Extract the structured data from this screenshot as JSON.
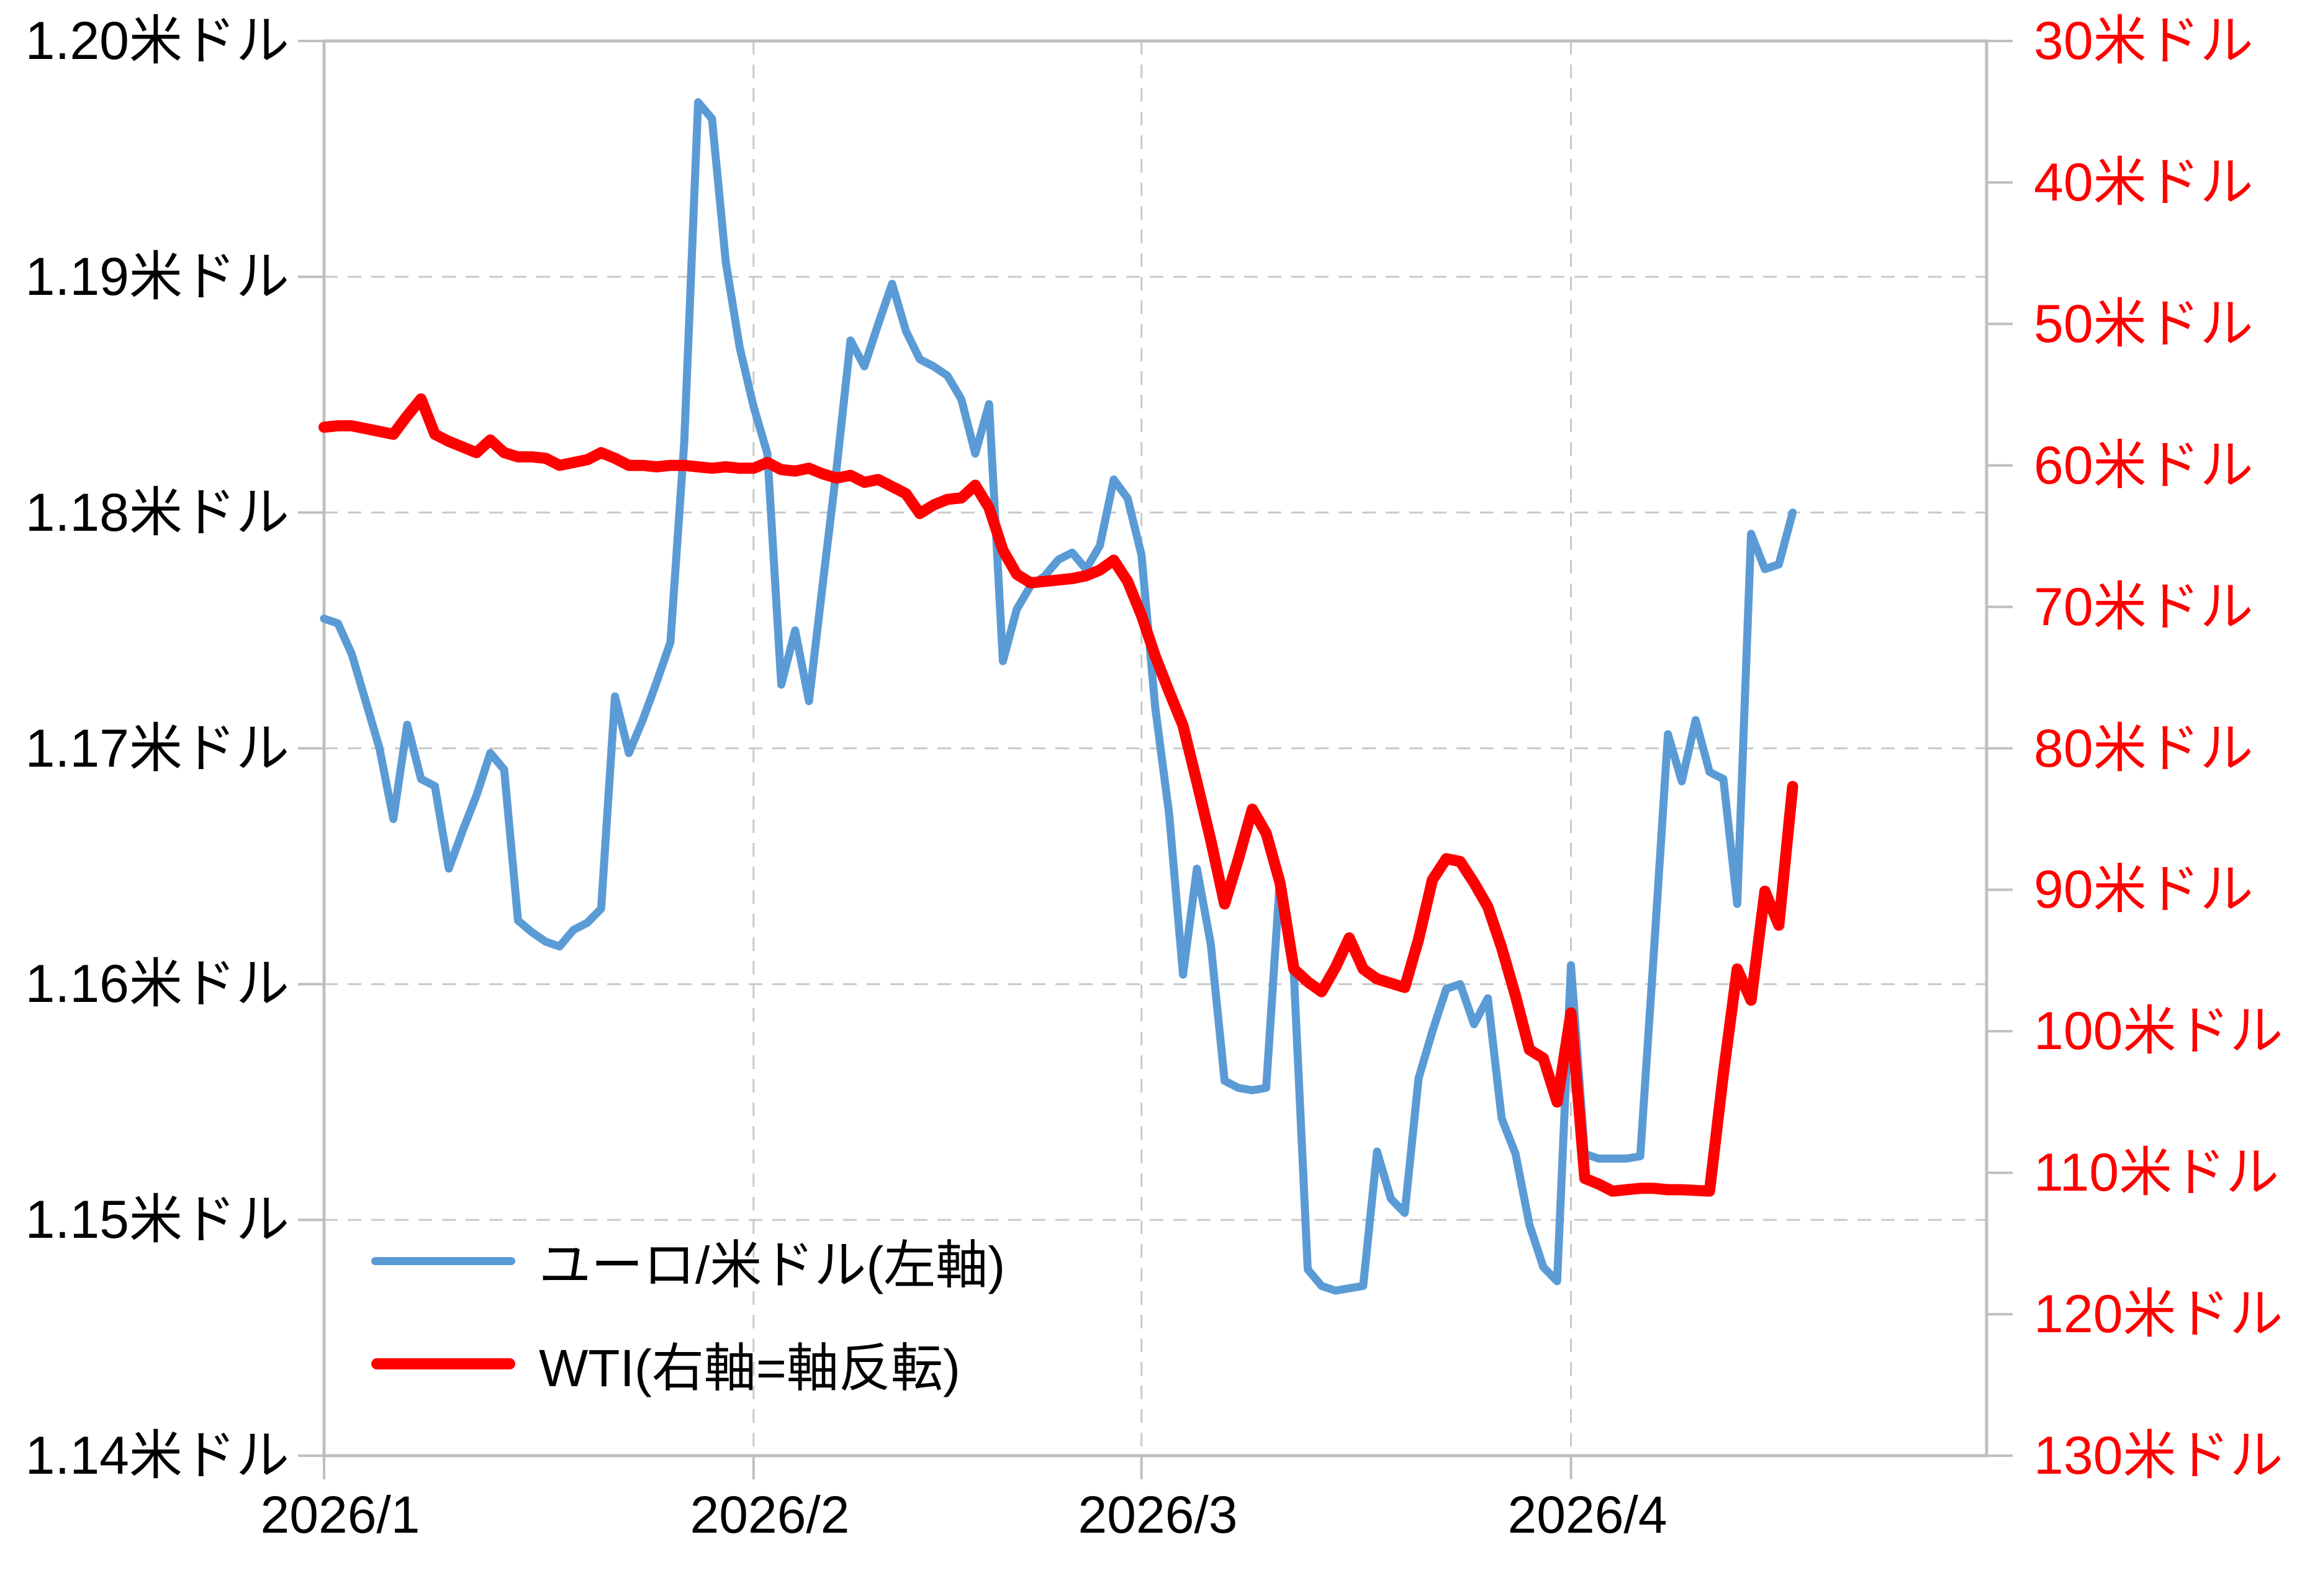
{
  "chart_data": {
    "type": "line",
    "title": "",
    "x_axis": {
      "tick_labels": [
        "2026/1",
        "2026/2",
        "2026/3",
        "2026/4"
      ],
      "tick_day_indices": [
        0,
        31,
        59,
        90
      ],
      "total_day_slots": 120,
      "start_date": "2026/1/1",
      "end_date": "2026/4/17"
    },
    "left_axis": {
      "labels": [
        "1.20米ドル",
        "1.19米ドル",
        "1.18米ドル",
        "1.17米ドル",
        "1.16米ドル",
        "1.15米ドル",
        "1.14米ドル"
      ],
      "max": 1.2,
      "min": 1.14,
      "unit": "米ドル",
      "color": "#000000"
    },
    "right_axis": {
      "labels": [
        "30米ドル",
        "40米ドル",
        "50米ドル",
        "60米ドル",
        "70米ドル",
        "80米ドル",
        "90米ドル",
        "100米ドル",
        "110米ドル",
        "120米ドル",
        "130米ドル"
      ],
      "min": 30,
      "max": 130,
      "inverted": true,
      "unit": "米ドル",
      "color": "#FF0000"
    },
    "grid": true,
    "legend_position": "inside-lower-left",
    "series": [
      {
        "name": "ユーロ/米ドル(左軸)",
        "axis": "left",
        "color": "#5B9BD5",
        "stroke_width": 13,
        "values": [
          1.1755,
          1.1753,
          1.174,
          1.172,
          1.17,
          1.167,
          1.171,
          1.1687,
          1.1684,
          1.1649,
          1.1665,
          1.168,
          1.1698,
          1.1691,
          1.1627,
          1.1622,
          1.1618,
          1.1616,
          1.1623,
          1.1626,
          1.1632,
          1.1722,
          1.1698,
          1.1712,
          1.1728,
          1.1745,
          1.183,
          1.1974,
          1.1967,
          1.1906,
          1.187,
          1.1845,
          1.1825,
          1.1727,
          1.175,
          1.172,
          1.177,
          1.1819,
          1.1873,
          1.1862,
          1.188,
          1.1897,
          1.1877,
          1.1865,
          1.1862,
          1.1858,
          1.1848,
          1.1825,
          1.1846,
          1.1737,
          1.1759,
          1.1769,
          1.1773,
          1.178,
          1.1783,
          1.1776,
          1.1786,
          1.1814,
          1.1806,
          1.1782,
          1.1717,
          1.1672,
          1.1604,
          1.1649,
          1.1617,
          1.1559,
          1.1556,
          1.1555,
          1.1556,
          1.1645,
          1.1604,
          1.1479,
          1.1472,
          1.147,
          1.1471,
          1.1472,
          1.1529,
          1.1509,
          1.1503,
          1.156,
          1.158,
          1.1598,
          1.16,
          1.1583,
          1.1594,
          1.1543,
          1.1528,
          1.1498,
          1.148,
          1.1474,
          1.1608,
          1.1528,
          1.1526,
          1.1526,
          1.1526,
          1.1527,
          1.1615,
          1.1706,
          1.1686,
          1.1712,
          1.169,
          1.1687,
          1.1634,
          1.1791,
          1.1776,
          1.1778,
          1.18
        ]
      },
      {
        "name": "WTI(右軸=軸反転)",
        "axis": "right",
        "color": "#FF0000",
        "stroke_width": 18,
        "values": [
          57.3,
          57.2,
          57.2,
          57.4,
          57.6,
          57.8,
          56.5,
          55.3,
          57.8,
          58.3,
          58.7,
          59.1,
          58.2,
          59.1,
          59.4,
          59.4,
          59.5,
          60.0,
          59.8,
          59.6,
          59.1,
          59.5,
          60.0,
          60.0,
          60.1,
          60.0,
          60.0,
          60.1,
          60.2,
          60.1,
          60.2,
          60.2,
          59.8,
          60.3,
          60.4,
          60.2,
          60.6,
          60.9,
          60.7,
          61.2,
          61.0,
          61.5,
          62.0,
          63.4,
          62.8,
          62.4,
          62.3,
          61.4,
          63.0,
          66.0,
          67.7,
          68.3,
          68.2,
          68.1,
          68.0,
          67.8,
          67.4,
          66.7,
          68.2,
          70.6,
          73.5,
          76.0,
          78.4,
          82.4,
          86.5,
          91.0,
          87.8,
          84.3,
          86.0,
          89.5,
          95.6,
          96.5,
          97.2,
          95.5,
          93.4,
          95.6,
          96.3,
          96.6,
          96.9,
          93.5,
          89.3,
          87.8,
          88.0,
          89.5,
          91.2,
          94.1,
          97.5,
          101.3,
          101.9,
          105.0,
          98.7,
          110.4,
          110.8,
          111.3,
          111.2,
          111.1,
          111.1,
          111.2,
          111.2,
          111.25,
          111.3,
          103.0,
          95.6,
          97.8,
          90.1,
          92.5,
          82.7
        ]
      }
    ]
  },
  "style": {
    "grid_color": "#C9C9C9",
    "axis_color": "#BFBFBF",
    "background": "#FFFFFF"
  }
}
